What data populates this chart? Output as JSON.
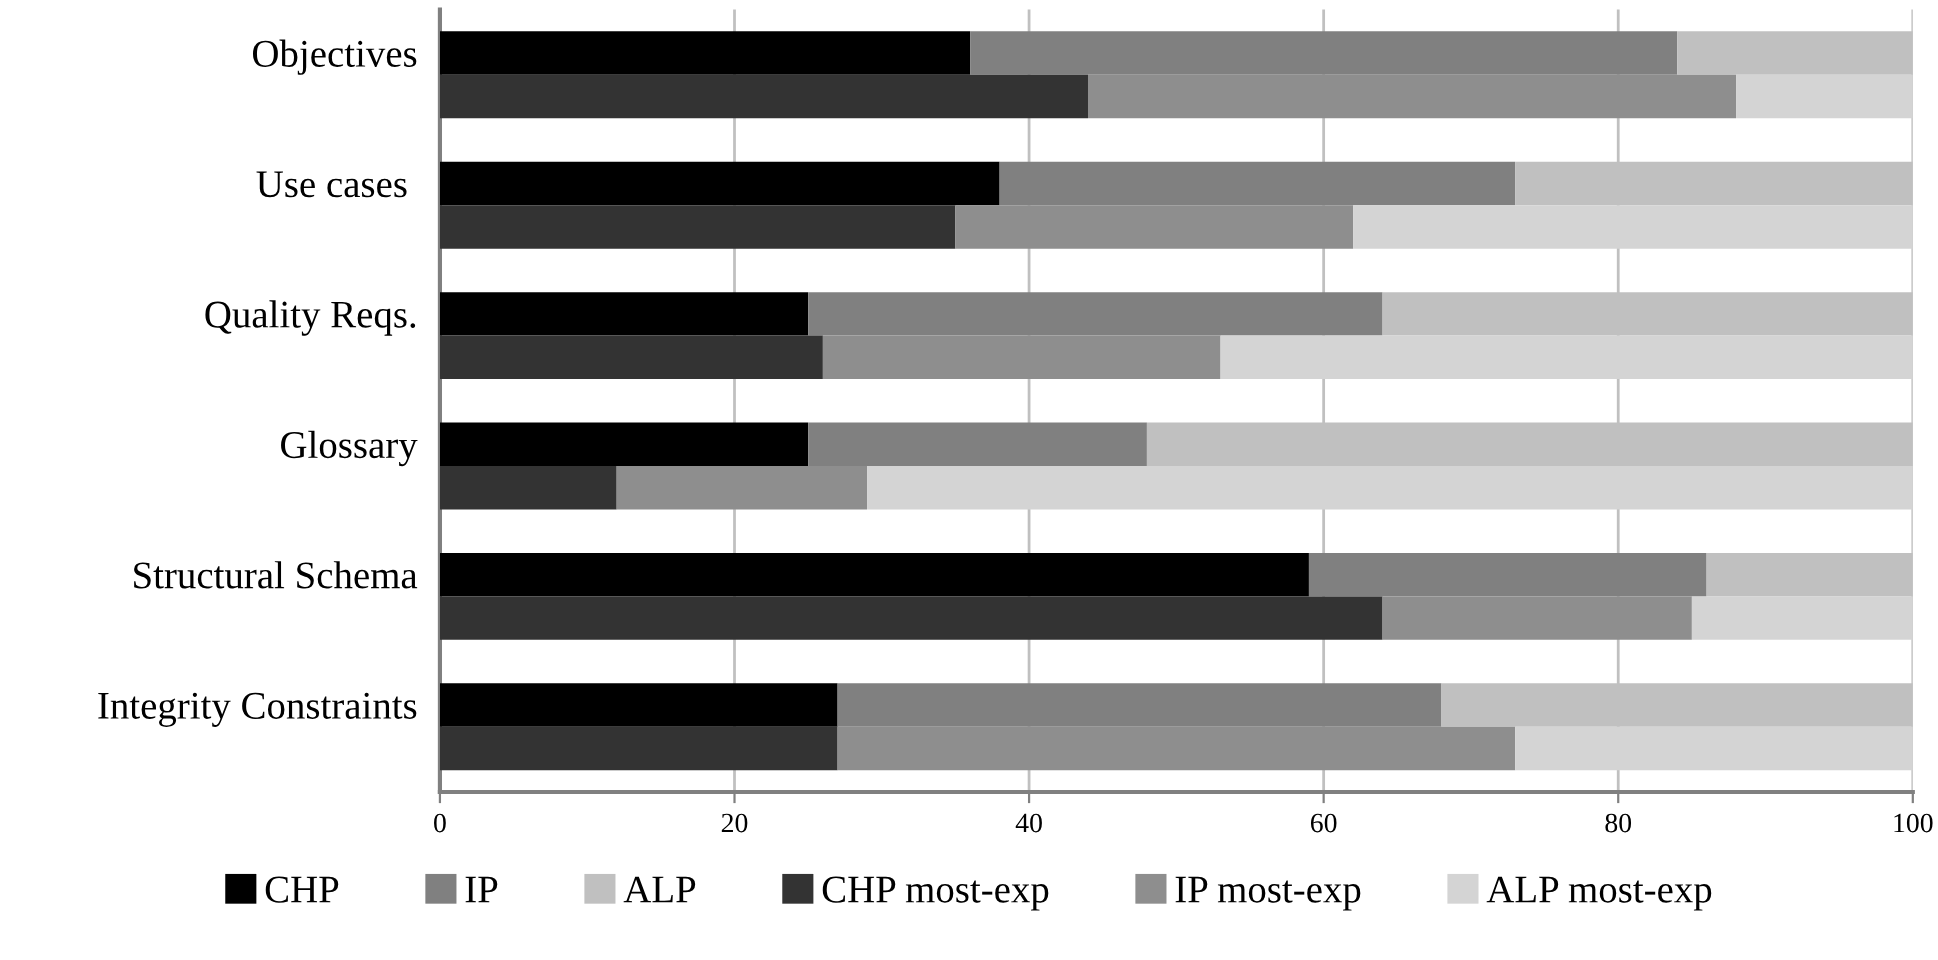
{
  "chart_data": {
    "type": "bar",
    "orientation": "horizontal",
    "stacked": true,
    "categories": [
      "Objectives",
      null,
      null,
      "Use cases ",
      null,
      null,
      "Quality Reqs.",
      null,
      null,
      "Glossary",
      null,
      null,
      "Structural Schema",
      null,
      null,
      "Integrity Constraints",
      null
    ],
    "series": [
      {
        "name": "CHP",
        "color": "#000000",
        "values": [
          36,
          null,
          null,
          38,
          null,
          null,
          25,
          null,
          null,
          25,
          null,
          null,
          59,
          null,
          null,
          27,
          null
        ]
      },
      {
        "name": "IP",
        "color": "#808080",
        "values": [
          48,
          null,
          null,
          35,
          null,
          null,
          39,
          null,
          null,
          23,
          null,
          null,
          27,
          null,
          null,
          41,
          null
        ]
      },
      {
        "name": "ALP",
        "color": "#c0c0c0",
        "values": [
          16,
          null,
          null,
          27,
          null,
          null,
          36,
          null,
          null,
          52,
          null,
          null,
          14,
          null,
          null,
          32,
          null
        ]
      },
      {
        "name": "CHP most-exp",
        "color": "#333333",
        "values": [
          null,
          44,
          null,
          null,
          35,
          null,
          null,
          26,
          null,
          null,
          12,
          null,
          null,
          64,
          null,
          null,
          27
        ]
      },
      {
        "name": "IP most-exp",
        "color": "#8e8e8e",
        "values": [
          null,
          44,
          null,
          null,
          27,
          null,
          null,
          27,
          null,
          null,
          17,
          null,
          null,
          21,
          null,
          null,
          46
        ]
      },
      {
        "name": "ALP most-exp",
        "color": "#d4d4d4",
        "values": [
          null,
          12,
          null,
          null,
          38,
          null,
          null,
          47,
          null,
          null,
          71,
          null,
          null,
          15,
          null,
          null,
          27
        ]
      }
    ],
    "xlim": [
      0,
      100
    ],
    "xticks": [
      0,
      20,
      40,
      60,
      80,
      100
    ],
    "grid": "x",
    "legend": "bottom"
  }
}
